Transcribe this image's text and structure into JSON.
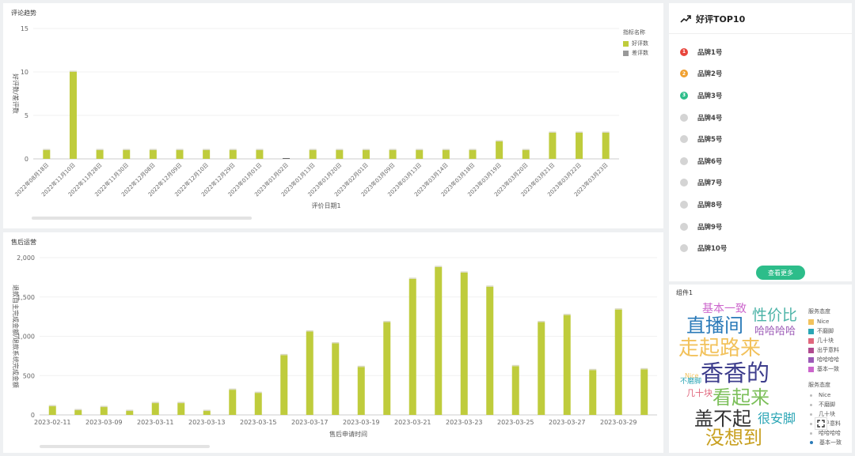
{
  "trend_panel": {
    "title": "评论趋势",
    "legend_title": "指标名称",
    "legend": [
      {
        "name": "好评数",
        "color": "#bfcc3c"
      },
      {
        "name": "差评数",
        "color": "#999999"
      }
    ]
  },
  "aftersale_panel": {
    "title": "售后运营"
  },
  "top10": {
    "title": "好评TOP10",
    "items": [
      {
        "rank": "1",
        "name": "品牌1号",
        "color": "#e8453c"
      },
      {
        "rank": "2",
        "name": "品牌2号",
        "color": "#f0a030"
      },
      {
        "rank": "3",
        "name": "品牌3号",
        "color": "#2dbd8a"
      },
      {
        "rank": "",
        "name": "品牌4号",
        "color": "#d4d4d4"
      },
      {
        "rank": "",
        "name": "品牌5号",
        "color": "#d4d4d4"
      },
      {
        "rank": "",
        "name": "品牌6号",
        "color": "#d4d4d4"
      },
      {
        "rank": "",
        "name": "品牌7号",
        "color": "#d4d4d4"
      },
      {
        "rank": "",
        "name": "品牌8号",
        "color": "#d4d4d4"
      },
      {
        "rank": "",
        "name": "品牌9号",
        "color": "#d4d4d4"
      },
      {
        "rank": "",
        "name": "品牌10号",
        "color": "#d4d4d4"
      }
    ],
    "button": "查看更多"
  },
  "component1": {
    "title": "组件1",
    "legend1_title": "服务态度",
    "legend1": [
      {
        "name": "Nice",
        "color": "#f2c25c"
      },
      {
        "name": "不磨脚",
        "color": "#2aa5b5"
      },
      {
        "name": "几十块",
        "color": "#e0677d"
      },
      {
        "name": "出乎意料",
        "color": "#b04a8f"
      },
      {
        "name": "哈哈哈哈",
        "color": "#9b59b6"
      },
      {
        "name": "基本一致",
        "color": "#cc66cc"
      }
    ],
    "legend2_title": "服务态度",
    "legend2": [
      {
        "name": "Nice",
        "color": "#bbbbbb"
      },
      {
        "name": "不磨脚",
        "color": "#bbbbbb"
      },
      {
        "name": "几十块",
        "color": "#bbbbbb"
      },
      {
        "name": "出乎意料",
        "color": "#bbbbbb"
      },
      {
        "name": "哈哈哈哈",
        "color": "#bbbbbb"
      },
      {
        "name": "基本一致",
        "color": "#2a7ab8"
      }
    ],
    "words": [
      {
        "text": "基本一致",
        "color": "#cc66cc"
      },
      {
        "text": "直播间",
        "color": "#2a7ab8"
      },
      {
        "text": "性价比",
        "color": "#4bb3a7"
      },
      {
        "text": "哈哈哈哈",
        "color": "#9b59b6"
      },
      {
        "text": "走起路来",
        "color": "#f2c25c"
      },
      {
        "text": "Nice",
        "color": "#f2c25c"
      },
      {
        "text": "不磨脚",
        "color": "#2aa5b5"
      },
      {
        "text": "香香的",
        "color": "#3d3d8c"
      },
      {
        "text": "几十块",
        "color": "#e0677d"
      },
      {
        "text": "看起来",
        "color": "#7cbf5a"
      },
      {
        "text": "盖不起",
        "color": "#333333"
      },
      {
        "text": "很安脚",
        "color": "#2aa5b5"
      },
      {
        "text": "没想到",
        "color": "#c8a020"
      }
    ]
  },
  "chart_data": [
    {
      "type": "bar",
      "xlabel": "评价日期1",
      "ylabel": "好评数/差评数",
      "ylim": [
        0,
        15
      ],
      "yticks": [
        "15",
        "10",
        "5",
        "0"
      ],
      "categories": [
        "2022年08月18日",
        "2022年11月10日",
        "2022年11月28日",
        "2022年11月30日",
        "2022年12月08日",
        "2022年12月09日",
        "2022年12月10日",
        "2022年12月29日",
        "2023年01月01日",
        "2023年01月02日",
        "2023年01月13日",
        "2023年01月20日",
        "2023年02月01日",
        "2023年03月09日",
        "2023年03月13日",
        "2023年03月14日",
        "2023年03月18日",
        "2023年03月19日",
        "2023年03月20日",
        "2023年03月21日",
        "2023年03月22日",
        "2023年03月23日"
      ],
      "series": [
        {
          "name": "好评数",
          "color": "#bfcc3c",
          "values": [
            1,
            10,
            1,
            1,
            1,
            1,
            1,
            1,
            1,
            0,
            1,
            1,
            1,
            1,
            1,
            1,
            1,
            2,
            1,
            3,
            3,
            3
          ]
        },
        {
          "name": "差评数",
          "color": "#999999",
          "values": [
            0,
            0,
            0,
            0,
            0,
            0,
            0,
            0,
            0,
            0,
            0,
            0,
            0,
            0,
            0,
            0,
            0,
            0,
            0,
            0,
            0,
            0
          ]
        }
      ]
    },
    {
      "type": "bar",
      "xlabel": "售后申请时间",
      "ylabel": "退款自主完成金额/退款系统完成金额",
      "ylim": [
        0,
        2000
      ],
      "yticks": [
        "2,000",
        "1,500",
        "1,000",
        "500",
        "0"
      ],
      "categories": [
        "2023-02-11",
        "2023-02-12",
        "2023-03-09",
        "2023-03-10",
        "2023-03-11",
        "2023-03-12",
        "2023-03-13",
        "2023-03-14",
        "2023-03-15",
        "2023-03-16",
        "2023-03-17",
        "2023-03-18",
        "2023-03-19",
        "2023-03-20",
        "2023-03-21",
        "2023-03-22",
        "2023-03-23",
        "2023-03-24",
        "2023-03-25",
        "2023-03-26",
        "2023-03-27",
        "2023-03-28",
        "2023-03-29",
        "2023-03-30"
      ],
      "tick_labels": [
        "2023-02-11",
        "2023-03-09",
        "2023-03-11",
        "2023-03-13",
        "2023-03-15",
        "2023-03-17",
        "2023-03-19",
        "2023-03-21",
        "2023-03-23",
        "2023-03-25",
        "2023-03-27",
        "2023-03-29"
      ],
      "series": [
        {
          "name": "",
          "color": "#bfcc3c",
          "values": [
            110,
            60,
            100,
            50,
            150,
            150,
            50,
            320,
            280,
            760,
            1060,
            910,
            610,
            1180,
            1730,
            1880,
            1810,
            1630,
            620,
            1180,
            1270,
            570,
            1340,
            580
          ]
        }
      ]
    }
  ]
}
